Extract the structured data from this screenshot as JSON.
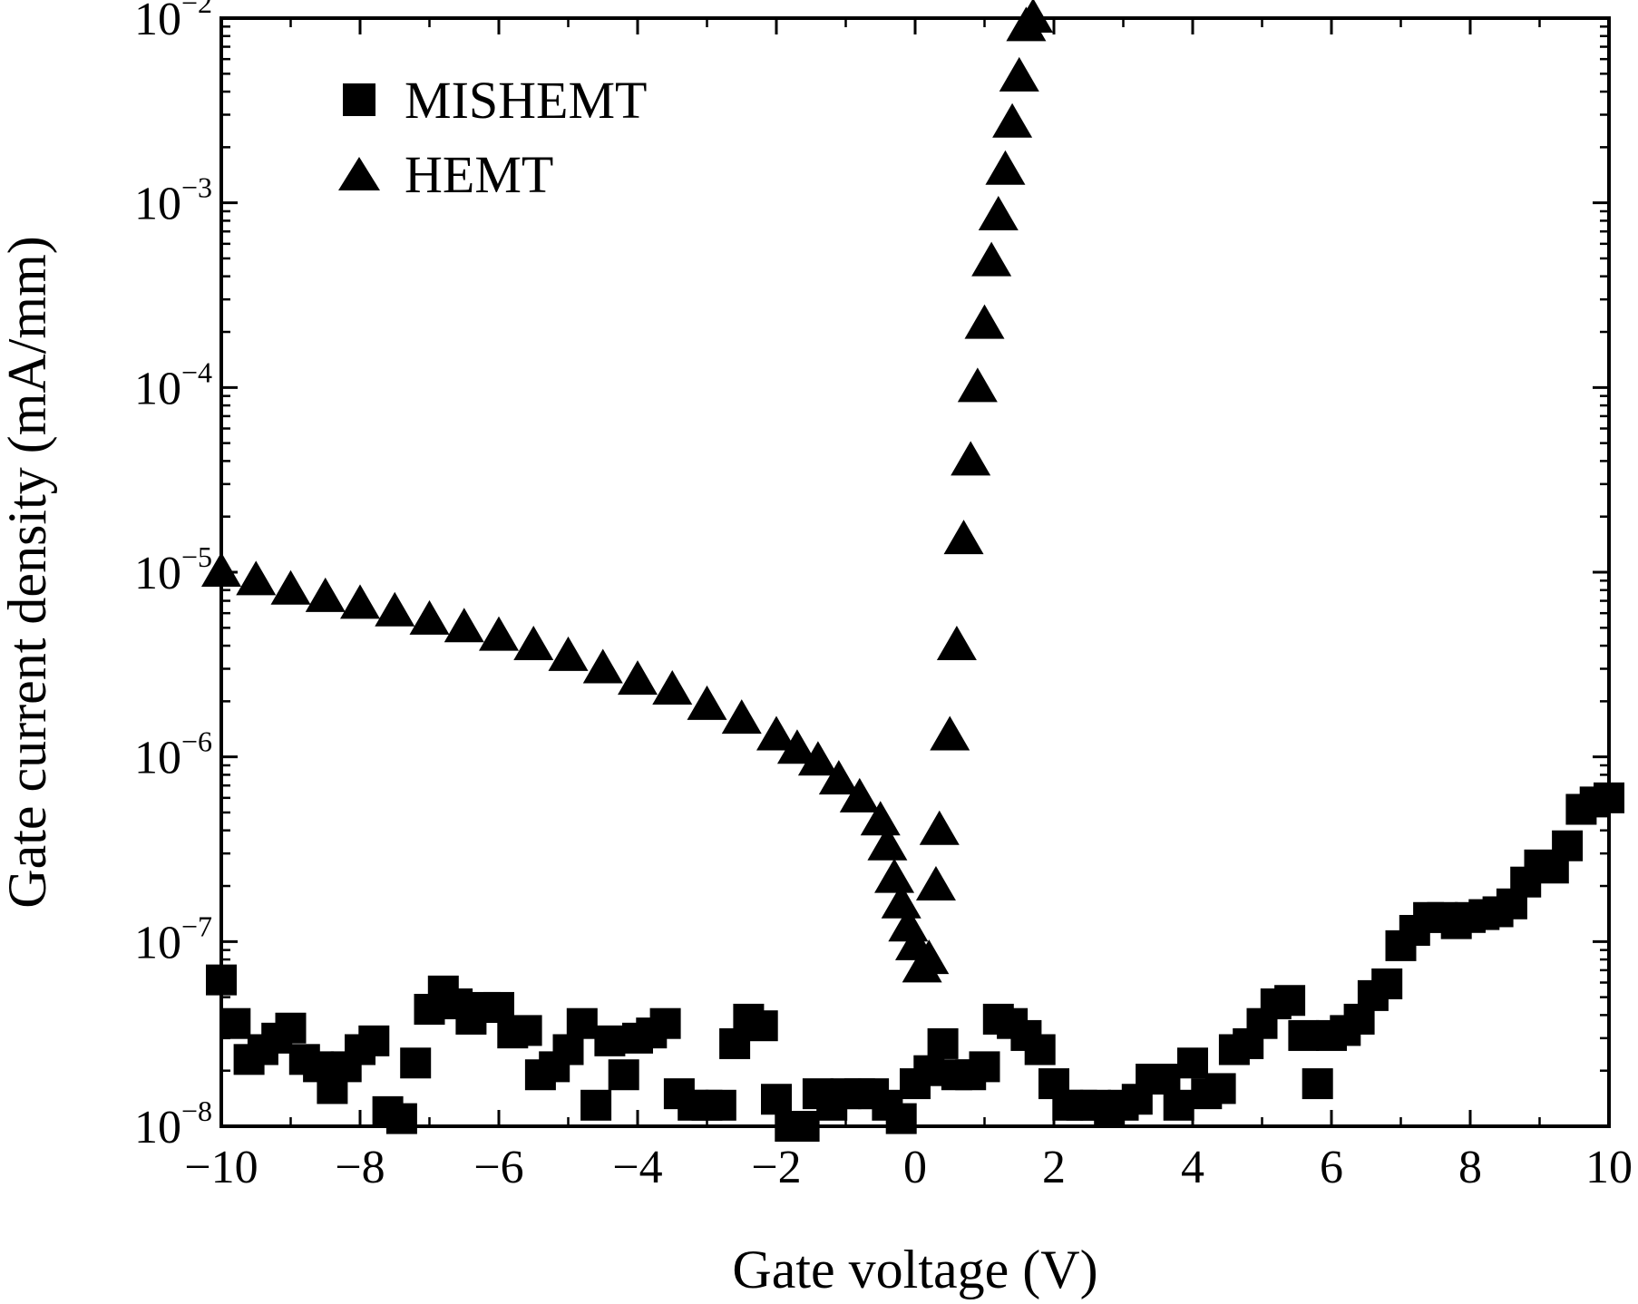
{
  "chart_data": {
    "type": "scatter",
    "title": "",
    "xlabel": "Gate voltage (V)",
    "ylabel": "Gate current density (mA/mm)",
    "xlim": [
      -10,
      10
    ],
    "ylim": [
      1e-08,
      0.01
    ],
    "yscale": "log",
    "grid": false,
    "legend_position": "top-left",
    "x_ticks": [
      -10,
      -8,
      -6,
      -4,
      -2,
      0,
      2,
      4,
      6,
      8,
      10
    ],
    "x_tick_labels": [
      "−10",
      "−8",
      "−6",
      "−4",
      "−2",
      "0",
      "2",
      "4",
      "6",
      "8",
      "10"
    ],
    "y_ticks": [
      {
        "value": 1e-08,
        "base": "10",
        "exp": "−8"
      },
      {
        "value": 1e-07,
        "base": "10",
        "exp": "−7"
      },
      {
        "value": 1e-06,
        "base": "10",
        "exp": "−6"
      },
      {
        "value": 1e-05,
        "base": "10",
        "exp": "−5"
      },
      {
        "value": 0.0001,
        "base": "10",
        "exp": "−4"
      },
      {
        "value": 0.001,
        "base": "10",
        "exp": "−3"
      },
      {
        "value": 0.01,
        "base": "10",
        "exp": "−2"
      }
    ],
    "series": [
      {
        "name": "MISHEMT",
        "marker": "square",
        "color": "#000000",
        "x": [
          -10.0,
          -9.8,
          -9.6,
          -9.4,
          -9.2,
          -9.0,
          -8.8,
          -8.6,
          -8.4,
          -8.2,
          -8.0,
          -7.8,
          -7.6,
          -7.4,
          -7.2,
          -7.0,
          -6.8,
          -6.6,
          -6.4,
          -6.2,
          -6.0,
          -5.8,
          -5.6,
          -5.4,
          -5.2,
          -5.0,
          -4.8,
          -4.6,
          -4.4,
          -4.2,
          -4.0,
          -3.8,
          -3.6,
          -3.4,
          -3.2,
          -3.0,
          -2.8,
          -2.6,
          -2.4,
          -2.2,
          -2.0,
          -1.8,
          -1.6,
          -1.4,
          -1.2,
          -1.0,
          -0.8,
          -0.6,
          -0.4,
          -0.2,
          0.0,
          0.2,
          0.4,
          0.6,
          0.8,
          1.0,
          1.2,
          1.4,
          1.6,
          1.8,
          2.0,
          2.2,
          2.4,
          2.6,
          2.8,
          3.0,
          3.2,
          3.4,
          3.6,
          3.8,
          4.0,
          4.2,
          4.4,
          4.6,
          4.8,
          5.0,
          5.2,
          5.4,
          5.6,
          5.8,
          6.0,
          6.2,
          6.4,
          6.6,
          6.8,
          7.0,
          7.2,
          7.4,
          7.6,
          7.8,
          8.0,
          8.2,
          8.4,
          8.6,
          8.8,
          9.0,
          9.2,
          9.4,
          9.6,
          9.8,
          10.0
        ],
        "y": [
          6.2e-08,
          3.6e-08,
          2.3e-08,
          2.6e-08,
          3e-08,
          3.4e-08,
          2.3e-08,
          2.1e-08,
          1.6e-08,
          2.1e-08,
          2.6e-08,
          2.9e-08,
          1.2e-08,
          1.1e-08,
          2.2e-08,
          4.3e-08,
          5.4e-08,
          4.6e-08,
          3.8e-08,
          4.4e-08,
          4.4e-08,
          3.2e-08,
          3.3e-08,
          1.9e-08,
          2.1e-08,
          2.6e-08,
          3.6e-08,
          1.3e-08,
          2.9e-08,
          1.9e-08,
          3e-08,
          3.2e-08,
          3.6e-08,
          1.5e-08,
          1.3e-08,
          1.3e-08,
          1.3e-08,
          2.8e-08,
          3.8e-08,
          3.5e-08,
          1.4e-08,
          9e-09,
          1e-08,
          1.5e-08,
          1.3e-08,
          1.5e-08,
          1.5e-08,
          1.5e-08,
          1.3e-08,
          1.1e-08,
          1.7e-08,
          2e-08,
          2.8e-08,
          1.9e-08,
          1.9e-08,
          2.1e-08,
          3.8e-08,
          3.6e-08,
          3.1e-08,
          2.6e-08,
          1.7e-08,
          1.3e-08,
          1.3e-08,
          1.3e-08,
          1.2e-08,
          1.3e-08,
          1.4e-08,
          1.8e-08,
          1.8e-08,
          1.3e-08,
          2.2e-08,
          1.5e-08,
          1.6e-08,
          2.6e-08,
          2.8e-08,
          3.6e-08,
          4.6e-08,
          4.8e-08,
          3.1e-08,
          1.7e-08,
          3.1e-08,
          3.3e-08,
          3.8e-08,
          5.1e-08,
          5.9e-08,
          9.5e-08,
          1.15e-07,
          1.35e-07,
          1.35e-07,
          1.25e-07,
          1.35e-07,
          1.4e-07,
          1.45e-07,
          1.6e-07,
          2.1e-07,
          2.6e-07,
          2.5e-07,
          3.3e-07,
          5.2e-07,
          5.7e-07,
          6e-07
        ]
      },
      {
        "name": "HEMT",
        "marker": "triangle",
        "color": "#000000",
        "x": [
          -10.0,
          -9.5,
          -9.0,
          -8.5,
          -8.0,
          -7.5,
          -7.0,
          -6.5,
          -6.0,
          -5.5,
          -5.0,
          -4.5,
          -4.0,
          -3.5,
          -3.0,
          -2.5,
          -2.0,
          -1.7,
          -1.4,
          -1.1,
          -0.8,
          -0.5,
          -0.4,
          -0.3,
          -0.2,
          -0.1,
          0.0,
          0.1,
          0.2,
          0.3,
          0.35,
          0.5,
          0.6,
          0.7,
          0.8,
          0.9,
          1.0,
          1.1,
          1.2,
          1.3,
          1.4,
          1.5,
          1.6,
          1.7
        ],
        "y": [
          1e-05,
          9e-06,
          8e-06,
          7.3e-06,
          6.7e-06,
          6.1e-06,
          5.5e-06,
          5e-06,
          4.5e-06,
          4e-06,
          3.5e-06,
          3e-06,
          2.6e-06,
          2.3e-06,
          1.9e-06,
          1.6e-06,
          1.3e-06,
          1.1e-06,
          9.5e-07,
          7.5e-07,
          6e-07,
          4.5e-07,
          3.3e-07,
          2.2e-07,
          1.6e-07,
          1.2e-07,
          9.5e-08,
          7.2e-08,
          8e-08,
          2e-07,
          4e-07,
          1.3e-06,
          4e-06,
          1.5e-05,
          4e-05,
          0.0001,
          0.00022,
          0.00048,
          0.00085,
          0.0015,
          0.0027,
          0.0048,
          0.009,
          0.01
        ]
      }
    ]
  },
  "legend": {
    "items": [
      {
        "label": "MISHEMT",
        "marker": "square"
      },
      {
        "label": "HEMT",
        "marker": "triangle"
      }
    ]
  }
}
